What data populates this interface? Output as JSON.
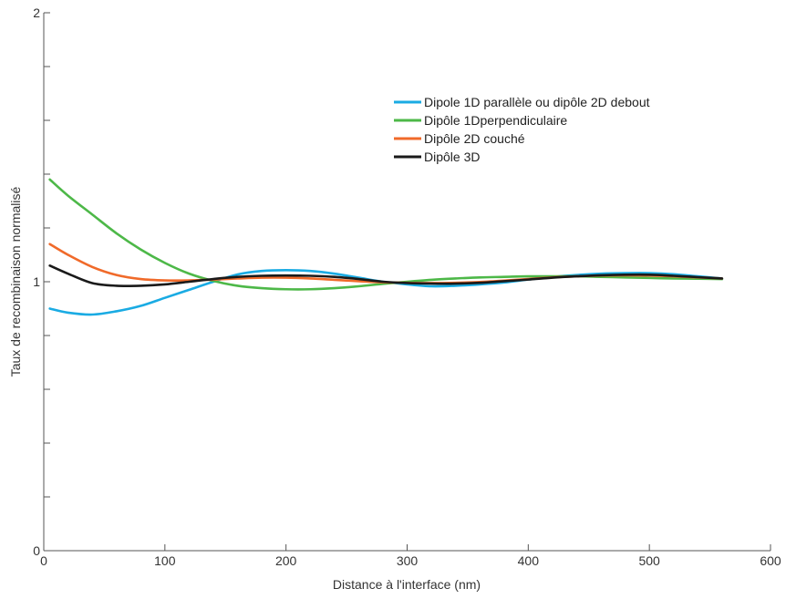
{
  "chart_data": {
    "type": "line",
    "title": "",
    "xlabel": "Distance à l'interface (nm)",
    "ylabel": "Taux de recombinaison normalisé",
    "xlim": [
      0,
      600
    ],
    "ylim": [
      0,
      2
    ],
    "x_ticks": [
      0,
      100,
      200,
      300,
      400,
      500,
      600
    ],
    "x_tick_labels": [
      "0",
      "100",
      "200",
      "300",
      "400",
      "500",
      "600"
    ],
    "y_ticks": [
      0,
      0.2,
      0.4,
      0.6,
      0.8,
      1,
      1.2,
      1.4,
      1.6,
      1.8,
      2
    ],
    "y_tick_labels": [
      "0",
      "",
      "",
      "",
      "",
      "1",
      "",
      "",
      "",
      "",
      "2"
    ],
    "grid": false,
    "legend_position": "top-right",
    "series": [
      {
        "name": "Dipole 1D parallèle ou dipôle 2D debout",
        "color": "#1aabe3",
        "x": [
          5,
          20,
          40,
          60,
          80,
          100,
          120,
          140,
          160,
          180,
          200,
          220,
          240,
          260,
          280,
          300,
          320,
          340,
          360,
          380,
          400,
          420,
          440,
          460,
          480,
          500,
          520,
          540,
          560
        ],
        "y": [
          0.9,
          0.885,
          0.878,
          0.89,
          0.91,
          0.94,
          0.97,
          1.0,
          1.027,
          1.04,
          1.043,
          1.04,
          1.03,
          1.015,
          1.0,
          0.99,
          0.983,
          0.985,
          0.99,
          0.997,
          1.008,
          1.018,
          1.025,
          1.03,
          1.032,
          1.032,
          1.028,
          1.02,
          1.012
        ]
      },
      {
        "name": "Dipôle 1Dperpendiculaire",
        "color": "#4db848",
        "x": [
          5,
          20,
          40,
          60,
          80,
          100,
          120,
          140,
          160,
          180,
          200,
          220,
          240,
          260,
          280,
          300,
          320,
          340,
          360,
          380,
          400,
          420,
          440,
          460,
          480,
          500,
          520,
          540,
          560
        ],
        "y": [
          1.38,
          1.32,
          1.25,
          1.18,
          1.12,
          1.07,
          1.03,
          1.003,
          0.985,
          0.976,
          0.972,
          0.972,
          0.976,
          0.983,
          0.992,
          1.0,
          1.007,
          1.012,
          1.016,
          1.018,
          1.02,
          1.02,
          1.02,
          1.018,
          1.016,
          1.014,
          1.012,
          1.011,
          1.01
        ]
      },
      {
        "name": "Dipôle 2D couché",
        "color": "#f06a2a",
        "x": [
          5,
          20,
          40,
          60,
          80,
          100,
          120,
          140,
          160,
          180,
          200,
          220,
          240,
          260,
          280,
          300,
          320,
          340,
          360,
          380,
          400,
          420,
          440,
          460,
          480,
          500,
          520,
          540,
          560
        ],
        "y": [
          1.14,
          1.1,
          1.055,
          1.025,
          1.01,
          1.005,
          1.005,
          1.008,
          1.012,
          1.015,
          1.015,
          1.012,
          1.007,
          1.002,
          0.998,
          0.996,
          0.995,
          0.996,
          0.999,
          1.004,
          1.01,
          1.016,
          1.02,
          1.023,
          1.024,
          1.023,
          1.02,
          1.016,
          1.012
        ]
      },
      {
        "name": "Dipôle 3D",
        "color": "#1a1a1a",
        "x": [
          5,
          20,
          40,
          60,
          80,
          100,
          120,
          140,
          160,
          180,
          200,
          220,
          240,
          260,
          280,
          300,
          320,
          340,
          360,
          380,
          400,
          420,
          440,
          460,
          480,
          500,
          520,
          540,
          560
        ],
        "y": [
          1.06,
          1.03,
          0.995,
          0.985,
          0.985,
          0.99,
          1.0,
          1.01,
          1.018,
          1.022,
          1.023,
          1.022,
          1.018,
          1.01,
          1.0,
          0.995,
          0.993,
          0.993,
          0.996,
          1.002,
          1.008,
          1.015,
          1.02,
          1.024,
          1.026,
          1.026,
          1.022,
          1.017,
          1.012
        ]
      }
    ]
  }
}
